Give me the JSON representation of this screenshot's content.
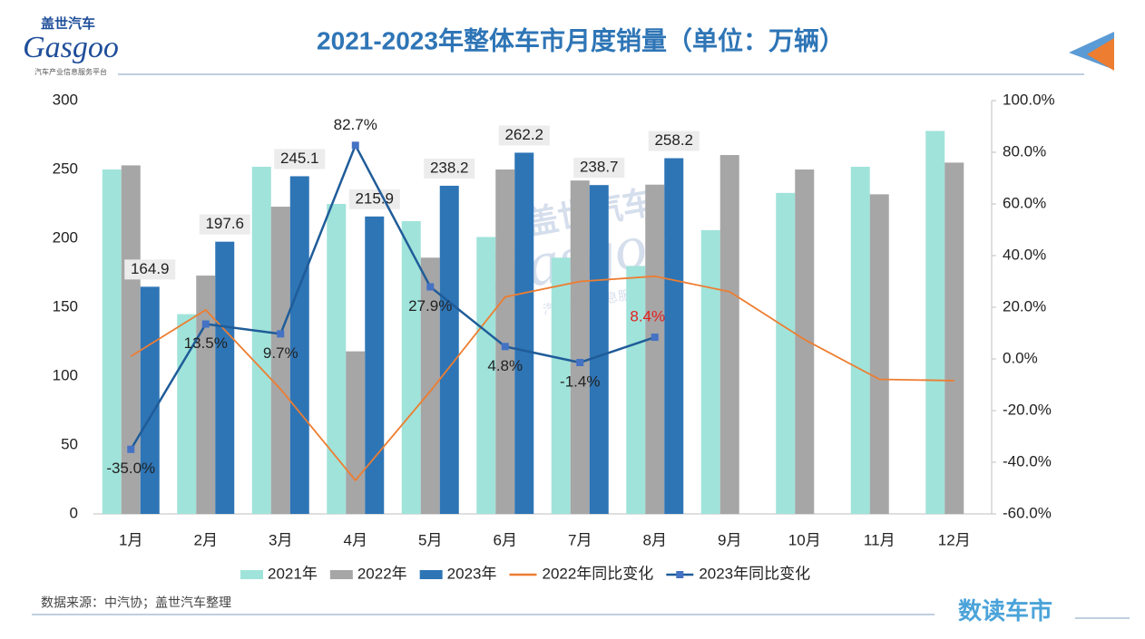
{
  "brand": {
    "cn": "盖世汽车",
    "en": "Gasgoo",
    "tagline": "汽车产业信息服务平台"
  },
  "source": "数据来源：中汽协；盖世汽车整理",
  "column": "数读车市",
  "chart_data": {
    "type": "bar",
    "title": "2021-2023年整体车市月度销量（单位：万辆）",
    "categories": [
      "1月",
      "2月",
      "3月",
      "4月",
      "5月",
      "6月",
      "7月",
      "8月",
      "9月",
      "10月",
      "11月",
      "12月"
    ],
    "series": [
      {
        "name": "2021年",
        "color": "#a0e3da",
        "values": [
          250,
          145,
          252,
          225,
          212.5,
          201,
          186,
          180,
          206,
          233,
          252,
          278
        ]
      },
      {
        "name": "2022年",
        "color": "#a6a6a6",
        "values": [
          253,
          173,
          223,
          118,
          186,
          250,
          242,
          239,
          260.5,
          250,
          232,
          255
        ]
      },
      {
        "name": "2023年",
        "color": "#2e75b6",
        "values": [
          164.9,
          197.6,
          245.1,
          215.9,
          238.2,
          262.2,
          238.7,
          258.2,
          null,
          null,
          null,
          null
        ],
        "show_labels": true
      },
      {
        "name": "2022年同比变化",
        "type": "line",
        "axis": "y2",
        "color": "#ed7d31",
        "values": [
          1,
          19,
          -11.7,
          -47,
          -12.5,
          24,
          30,
          32,
          26,
          7.5,
          -7.9,
          -8.4
        ]
      },
      {
        "name": "2023年同比变化",
        "type": "line",
        "axis": "y2",
        "color": "#1f5c99",
        "marker": "#4472c4",
        "values": [
          -35,
          13.5,
          9.7,
          82.7,
          27.9,
          4.8,
          -1.4,
          8.4,
          null,
          null,
          null,
          null
        ],
        "value_labels": [
          "-35.0%",
          "13.5%",
          "9.7%",
          "82.7%",
          "27.9%",
          "4.8%",
          "-1.4%",
          "8.4%",
          null,
          null,
          null,
          null
        ]
      }
    ],
    "ylim": [
      0,
      300
    ],
    "yticks": [
      0,
      50,
      100,
      150,
      200,
      250,
      300
    ],
    "y2lim": [
      -60,
      100
    ],
    "y2ticks": [
      {
        "value": -60,
        "label": "-60.0%"
      },
      {
        "value": -40,
        "label": "-40.0%"
      },
      {
        "value": -20,
        "label": "-20.0%"
      },
      {
        "value": 0,
        "label": "0.0%"
      },
      {
        "value": 20,
        "label": "20.0%"
      },
      {
        "value": 40,
        "label": "40.0%"
      },
      {
        "value": 60,
        "label": "60.0%"
      },
      {
        "value": 80,
        "label": "80.0%"
      },
      {
        "value": 100,
        "label": "100.0%"
      }
    ],
    "highlight_color": "#e02020"
  }
}
